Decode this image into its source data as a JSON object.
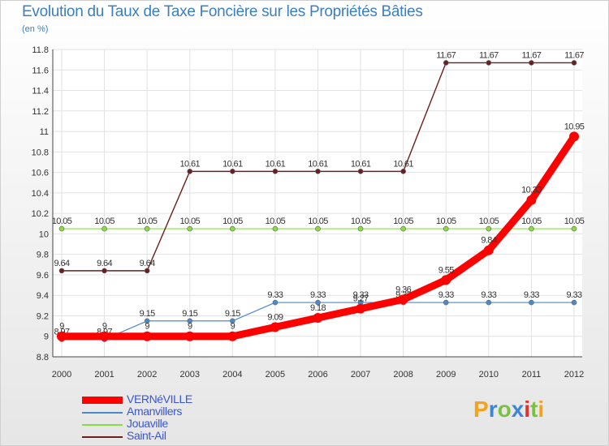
{
  "chart_data": {
    "type": "line",
    "title": "Evolution du Taux de Taxe Foncière sur les Propriétés Bâties",
    "ylabel": "(en %)",
    "xlabel": "",
    "categories": [
      "2000",
      "2001",
      "2002",
      "2003",
      "2004",
      "2005",
      "2006",
      "2007",
      "2008",
      "2009",
      "2010",
      "2011",
      "2012"
    ],
    "ylim": [
      8.8,
      11.8
    ],
    "yticks": [
      "8.8",
      "9",
      "9.2",
      "9.4",
      "9.6",
      "9.8",
      "10",
      "10.2",
      "10.4",
      "10.6",
      "10.8",
      "11",
      "11.2",
      "11.4",
      "11.6",
      "11.8"
    ],
    "ytick_values": [
      8.8,
      9.0,
      9.2,
      9.4,
      9.6,
      9.8,
      10.0,
      10.2,
      10.4,
      10.6,
      10.8,
      11.0,
      11.2,
      11.4,
      11.6,
      11.8
    ],
    "series": [
      {
        "name": "VERNéVILLE",
        "color": "#ff0000",
        "values": [
          9,
          9,
          9,
          9,
          9,
          9.09,
          9.18,
          9.27,
          9.36,
          9.55,
          9.84,
          10.33,
          10.95
        ],
        "labels": [
          "9",
          "9",
          "9",
          "9",
          "9",
          "9.09",
          "9.18",
          "9.27",
          "9.36",
          "9.55",
          "9.84",
          "10.33",
          "10.95"
        ]
      },
      {
        "name": "Amanvillers",
        "color": "#4a8ac9",
        "values": [
          8.97,
          8.97,
          9.15,
          9.15,
          9.15,
          9.33,
          9.33,
          9.33,
          9.33,
          9.33,
          9.33,
          9.33,
          9.33
        ],
        "labels": [
          "8.97",
          "8.97",
          "9.15",
          "9.15",
          "9.15",
          "9.33",
          "9.33",
          "9.33",
          "9.33",
          "9.33",
          "9.33",
          "9.33",
          "9.33"
        ]
      },
      {
        "name": "Jouaville",
        "color": "#88dd44",
        "values": [
          10.05,
          10.05,
          10.05,
          10.05,
          10.05,
          10.05,
          10.05,
          10.05,
          10.05,
          10.05,
          10.05,
          10.05,
          10.05
        ],
        "labels": [
          "10.05",
          "10.05",
          "10.05",
          "10.05",
          "10.05",
          "10.05",
          "10.05",
          "10.05",
          "10.05",
          "10.05",
          "10.05",
          "10.05",
          "10.05"
        ]
      },
      {
        "name": "Saint-Ail",
        "color": "#6b1f1f",
        "values": [
          9.64,
          9.64,
          9.64,
          10.61,
          10.61,
          10.61,
          10.61,
          10.61,
          10.61,
          11.67,
          11.67,
          11.67,
          11.67
        ],
        "labels": [
          "9.64",
          "9.64",
          "9.64",
          "10.61",
          "10.61",
          "10.61",
          "10.61",
          "10.61",
          "10.61",
          "11.67",
          "11.67",
          "11.67",
          "11.67"
        ]
      }
    ],
    "legend_position": "bottom-left"
  },
  "logo": {
    "letters": [
      "P",
      "r",
      "o",
      "x",
      "i",
      "t",
      "i"
    ],
    "colors": [
      "#f3a21a",
      "#3d86d3",
      "#7cc242",
      "#3d86d3",
      "#e2322b",
      "#7cc242",
      "#f3a21a"
    ]
  }
}
